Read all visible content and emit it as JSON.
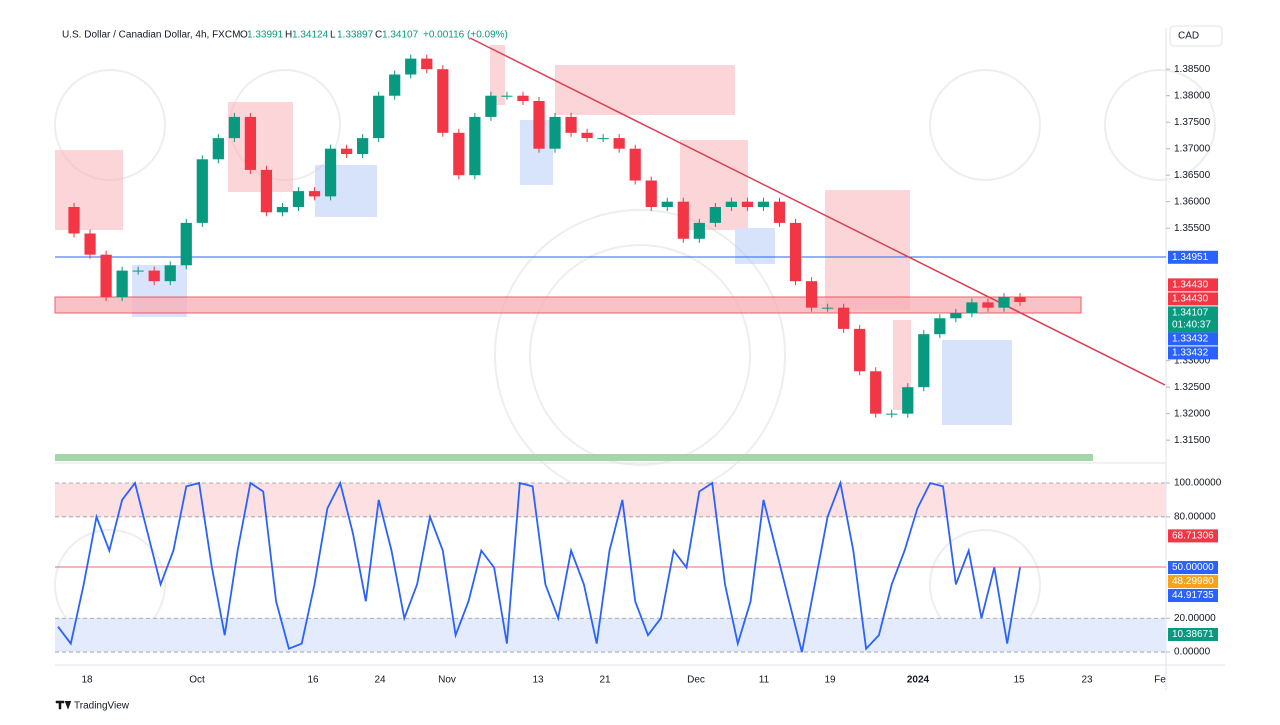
{
  "header": {
    "symbol": "U.S. Dollar / Canadian Dollar, 4h, FXCM",
    "ohlc": [
      {
        "key": "O",
        "value": "1.33991"
      },
      {
        "key": "H",
        "value": "1.34124"
      },
      {
        "key": "L",
        "value": "1.33897"
      },
      {
        "key": "C",
        "value": "1.34107"
      }
    ],
    "change": "+0.00116 (+0.09%)"
  },
  "currency_button": "CAD",
  "brand": "TradingView",
  "chart_data": [
    {
      "type": "candlestick",
      "values": [
        1.359,
        1.354,
        1.35,
        1.342,
        1.347,
        1.347,
        1.345,
        1.348,
        1.356,
        1.368,
        1.372,
        1.376,
        1.366,
        1.358,
        1.359,
        1.362,
        1.361,
        1.37,
        1.369,
        1.372,
        1.38,
        1.384,
        1.387,
        1.385,
        1.373,
        1.365,
        1.376,
        1.38,
        1.38,
        1.379,
        1.37,
        1.376,
        1.373,
        1.372,
        1.372,
        1.37,
        1.364,
        1.359,
        1.36,
        1.353,
        1.356,
        1.359,
        1.36,
        1.359,
        1.36,
        1.356,
        1.345,
        1.34,
        1.34,
        1.336,
        1.328,
        1.32,
        1.32,
        1.325,
        1.335,
        1.338,
        1.339,
        1.341,
        1.34,
        1.342,
        1.34107
      ],
      "up_color": "#089981",
      "down_color": "#f23645",
      "ylim": [
        1.3122,
        1.3924
      ],
      "yticks": [
        {
          "value": 1.385,
          "label": "1.38500"
        },
        {
          "value": 1.38,
          "label": "1.38000"
        },
        {
          "value": 1.375,
          "label": "1.37500"
        },
        {
          "value": 1.37,
          "label": "1.37000"
        },
        {
          "value": 1.365,
          "label": "1.36500"
        },
        {
          "value": 1.36,
          "label": "1.36000"
        },
        {
          "value": 1.355,
          "label": "1.35500"
        },
        {
          "value": 1.33,
          "label": "1.33000"
        },
        {
          "value": 1.325,
          "label": "1.32500"
        },
        {
          "value": 1.32,
          "label": "1.32000"
        },
        {
          "value": 1.315,
          "label": "1.31500"
        }
      ],
      "badges": [
        {
          "value": 1.34951,
          "label": "1.34951",
          "color": "#2962ff"
        },
        {
          "value": 1.3443,
          "label": "1.34430",
          "color": "#f23645"
        },
        {
          "value": 1.3443,
          "label": "1.34430",
          "color": "#f23645"
        },
        {
          "value": 1.34107,
          "label": "1.34107",
          "color": "#089981",
          "timer": "01:40:37"
        },
        {
          "value": 1.33432,
          "label": "1.33432",
          "color": "#2962ff"
        },
        {
          "value": 1.33432,
          "label": "1.33432",
          "color": "#2962ff"
        }
      ]
    },
    {
      "type": "line",
      "values": [
        15,
        5,
        40,
        80,
        60,
        90,
        100,
        70,
        40,
        60,
        98,
        100,
        50,
        10,
        60,
        100,
        95,
        30,
        2,
        5,
        40,
        85,
        100,
        70,
        30,
        90,
        60,
        20,
        40,
        80,
        60,
        10,
        30,
        60,
        50,
        5,
        100,
        98,
        40,
        20,
        60,
        40,
        5,
        60,
        90,
        30,
        10,
        20,
        60,
        50,
        95,
        100,
        40,
        5,
        30,
        90,
        60,
        30,
        0,
        40,
        80,
        100,
        60,
        2,
        10,
        40,
        60,
        85,
        100,
        98,
        40,
        60,
        20,
        50,
        5,
        50
      ],
      "color": "#2962ff",
      "ylim": [
        -4.7,
        107.7
      ],
      "yticks": [
        {
          "value": 100,
          "label": "100.00000"
        },
        {
          "value": 80,
          "label": "80.00000"
        },
        {
          "value": 20,
          "label": "20.00000"
        },
        {
          "value": 0,
          "label": "0.00000"
        }
      ],
      "badges": [
        {
          "value": 68.71306,
          "label": "68.71306",
          "color": "#f23645"
        },
        {
          "value": 50,
          "label": "50.00000",
          "color": "#2962ff"
        },
        {
          "value": 48.2998,
          "label": "48.29980",
          "color": "#f7a21b"
        },
        {
          "value": 44.91735,
          "label": "44.91735",
          "color": "#2962ff"
        },
        {
          "value": 10.38671,
          "label": "10.38671",
          "color": "#089981"
        }
      ]
    }
  ],
  "time_axis": [
    "18",
    "Oct",
    "16",
    "24",
    "Nov",
    "13",
    "21",
    "Dec",
    "11",
    "19",
    "2024",
    "15",
    "23",
    "Fe"
  ]
}
